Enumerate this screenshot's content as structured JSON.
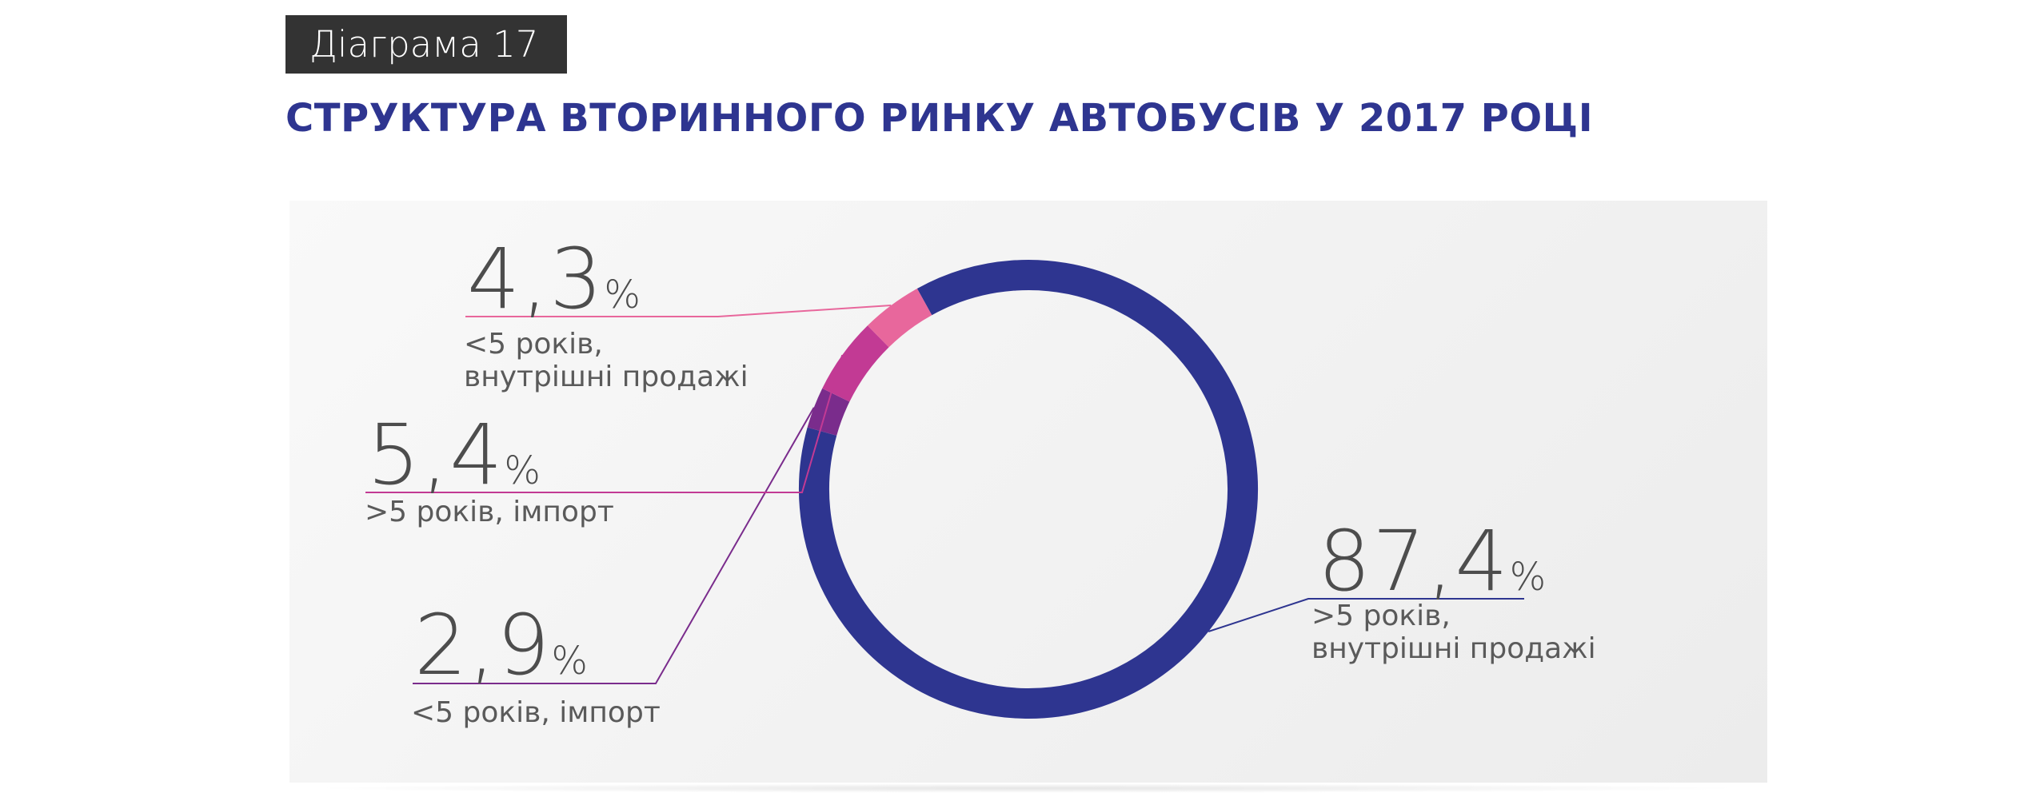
{
  "header": {
    "badge": "Діаграма 17",
    "title": "СТРУКТУРА ВТОРИННОГО РИНКУ АВТОБУСІВ У 2017 РОЦІ"
  },
  "colors": {
    "title": "#2e3590",
    "badge_bg": "#333333",
    "value_text": "#4d4d4d",
    "label_text": "#5a5a5a"
  },
  "chart_data": {
    "type": "pie",
    "style": "donut",
    "unit": "%",
    "slices": [
      {
        "value": 87.4,
        "value_label": "87,4",
        "label_line1": ">5 років,",
        "label_line2": "внутрішні продажі",
        "color": "#2e3590"
      },
      {
        "value": 2.9,
        "value_label": "2,9",
        "label_line1": "<5 років, імпорт",
        "label_line2": "",
        "color": "#7a2c8c"
      },
      {
        "value": 5.4,
        "value_label": "5,4",
        "label_line1": ">5 років, імпорт",
        "label_line2": "",
        "color": "#c23a94"
      },
      {
        "value": 4.3,
        "value_label": "4,3",
        "label_line1": "<5 років,",
        "label_line2": "внутрішні продажі",
        "color": "#e8679c"
      }
    ]
  }
}
